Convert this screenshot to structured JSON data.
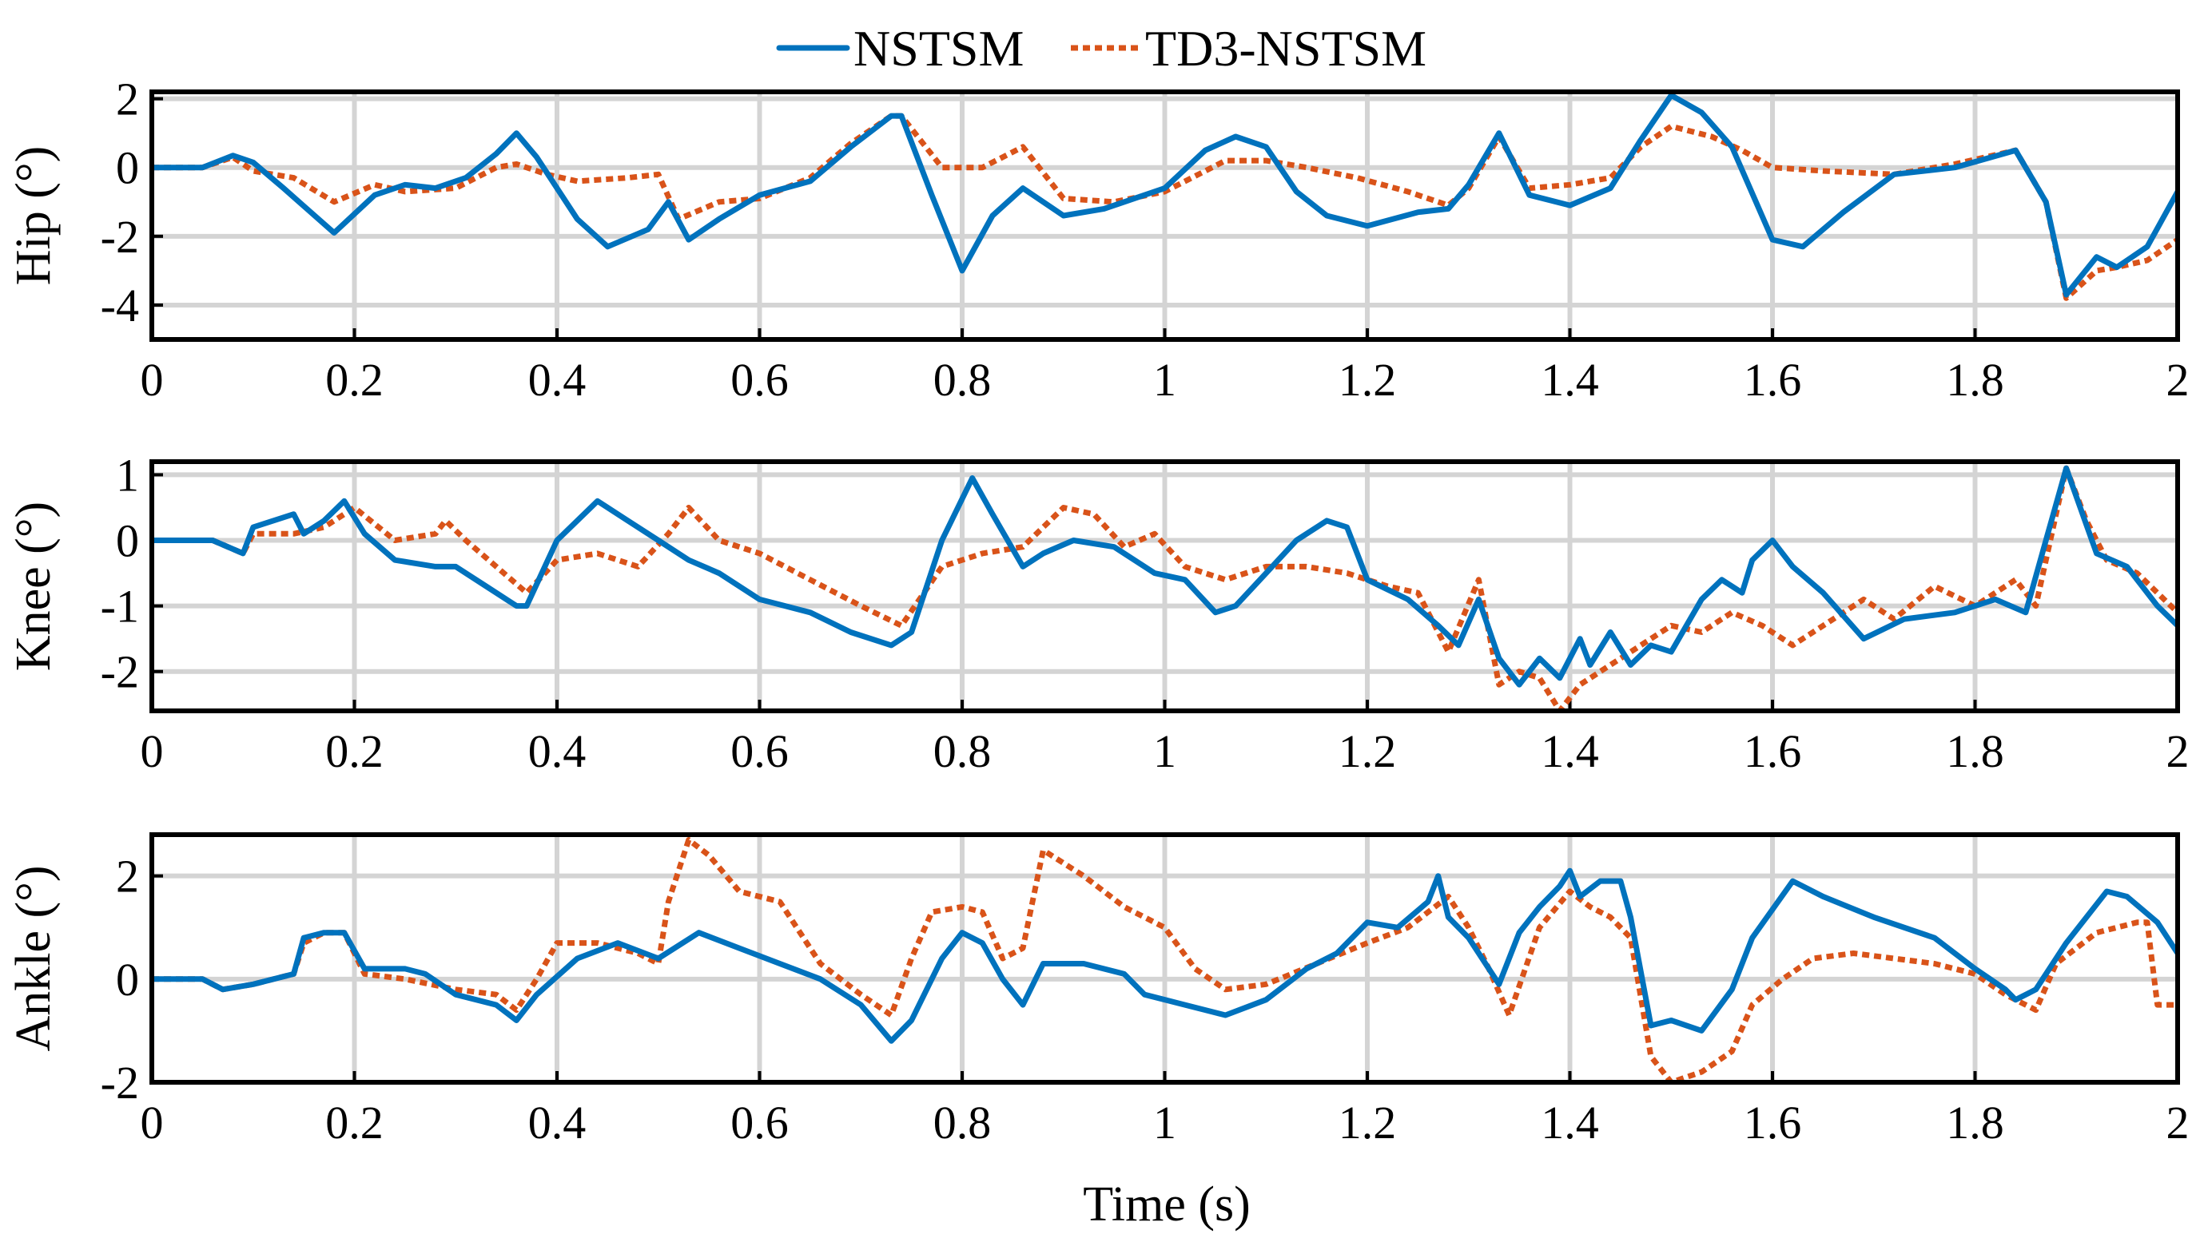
{
  "colors": {
    "nstsm": "#0072BD",
    "td3_nstsm": "#D95319",
    "grid": "#d4d4d4"
  },
  "legend": {
    "items": [
      "NSTSM",
      "TD3-NSTSM"
    ],
    "placement": "top-center"
  },
  "xlabel": "Time (s)",
  "chart_data": [
    {
      "type": "line",
      "title": "",
      "ylabel": "Hip (°)",
      "xlabel": "",
      "xlim": [
        0,
        2
      ],
      "ylim": [
        -5,
        2.2
      ],
      "xticks": [
        0,
        0.2,
        0.4,
        0.6,
        0.8,
        1,
        1.2,
        1.4,
        1.6,
        1.8,
        2
      ],
      "xtick_labels": [
        "0",
        "0.2",
        "0.4",
        "0.6",
        "0.8",
        "1",
        "1.2",
        "1.4",
        "1.6",
        "1.8",
        "2"
      ],
      "yticks": [
        2,
        0,
        -2,
        -4
      ],
      "ytick_labels": [
        "2",
        "0",
        "-2",
        "-4"
      ],
      "grid": true,
      "series": [
        {
          "name": "NSTSM",
          "x": [
            0,
            0.05,
            0.08,
            0.1,
            0.13,
            0.18,
            0.22,
            0.25,
            0.28,
            0.31,
            0.34,
            0.36,
            0.38,
            0.42,
            0.45,
            0.49,
            0.51,
            0.53,
            0.56,
            0.6,
            0.65,
            0.69,
            0.73,
            0.74,
            0.77,
            0.8,
            0.83,
            0.86,
            0.9,
            0.94,
            1,
            1.04,
            1.07,
            1.1,
            1.13,
            1.16,
            1.2,
            1.25,
            1.28,
            1.3,
            1.33,
            1.36,
            1.4,
            1.44,
            1.47,
            1.5,
            1.53,
            1.56,
            1.6,
            1.63,
            1.67,
            1.72,
            1.78,
            1.84,
            1.87,
            1.89,
            1.92,
            1.94,
            1.97,
            2
          ],
          "y": [
            0,
            0,
            0.35,
            0.15,
            -0.6,
            -1.9,
            -0.8,
            -0.5,
            -0.6,
            -0.3,
            0.4,
            1,
            0.3,
            -1.5,
            -2.3,
            -1.8,
            -1,
            -2.1,
            -1.5,
            -0.8,
            -0.4,
            0.6,
            1.5,
            1.5,
            -0.8,
            -3,
            -1.4,
            -0.6,
            -1.4,
            -1.2,
            -0.6,
            0.5,
            0.9,
            0.6,
            -0.7,
            -1.4,
            -1.7,
            -1.3,
            -1.2,
            -0.5,
            1,
            -0.8,
            -1.1,
            -0.6,
            0.8,
            2.1,
            1.6,
            0.6,
            -2.1,
            -2.3,
            -1.3,
            -0.2,
            0,
            0.5,
            -1,
            -3.7,
            -2.6,
            -2.9,
            -2.3,
            -0.7
          ]
        },
        {
          "name": "TD3-NSTSM",
          "x": [
            0,
            0.05,
            0.08,
            0.1,
            0.14,
            0.18,
            0.22,
            0.25,
            0.3,
            0.34,
            0.36,
            0.39,
            0.42,
            0.47,
            0.5,
            0.52,
            0.56,
            0.6,
            0.65,
            0.69,
            0.73,
            0.74,
            0.78,
            0.82,
            0.86,
            0.9,
            0.95,
            1,
            1.06,
            1.1,
            1.14,
            1.19,
            1.24,
            1.28,
            1.3,
            1.33,
            1.36,
            1.4,
            1.44,
            1.47,
            1.5,
            1.54,
            1.57,
            1.6,
            1.65,
            1.72,
            1.78,
            1.84,
            1.87,
            1.89,
            1.92,
            1.94,
            1.97,
            2
          ],
          "y": [
            0,
            0,
            0.3,
            -0.1,
            -0.3,
            -1,
            -0.5,
            -0.7,
            -0.6,
            0,
            0.1,
            -0.2,
            -0.4,
            -0.3,
            -0.2,
            -1.5,
            -1,
            -0.9,
            -0.3,
            0.7,
            1.5,
            1.5,
            0,
            0,
            0.6,
            -0.9,
            -1,
            -0.7,
            0.2,
            0.2,
            0,
            -0.3,
            -0.7,
            -1.1,
            -0.6,
            0.9,
            -0.6,
            -0.5,
            -0.3,
            0.6,
            1.2,
            0.9,
            0.5,
            0,
            -0.1,
            -0.2,
            0.1,
            0.5,
            -1,
            -3.8,
            -3,
            -2.9,
            -2.7,
            -2.1
          ]
        }
      ]
    },
    {
      "type": "line",
      "title": "",
      "ylabel": "Knee (°)",
      "xlabel": "",
      "xlim": [
        0,
        2
      ],
      "ylim": [
        -2.6,
        1.2
      ],
      "xticks": [
        0,
        0.2,
        0.4,
        0.6,
        0.8,
        1,
        1.2,
        1.4,
        1.6,
        1.8,
        2
      ],
      "xtick_labels": [
        "0",
        "0.2",
        "0.4",
        "0.6",
        "0.8",
        "1",
        "1.2",
        "1.4",
        "1.6",
        "1.8",
        "2"
      ],
      "yticks": [
        1,
        0,
        -1,
        -2
      ],
      "ytick_labels": [
        "1",
        "0",
        "-1",
        "-2"
      ],
      "grid": true,
      "series": [
        {
          "name": "NSTSM",
          "x": [
            0,
            0.06,
            0.09,
            0.1,
            0.14,
            0.15,
            0.17,
            0.19,
            0.21,
            0.24,
            0.28,
            0.3,
            0.33,
            0.36,
            0.37,
            0.4,
            0.44,
            0.47,
            0.5,
            0.53,
            0.56,
            0.6,
            0.65,
            0.69,
            0.73,
            0.75,
            0.78,
            0.81,
            0.83,
            0.86,
            0.88,
            0.91,
            0.95,
            0.99,
            1.02,
            1.05,
            1.07,
            1.1,
            1.13,
            1.16,
            1.18,
            1.2,
            1.24,
            1.27,
            1.29,
            1.31,
            1.33,
            1.35,
            1.37,
            1.39,
            1.41,
            1.42,
            1.44,
            1.46,
            1.48,
            1.5,
            1.53,
            1.55,
            1.57,
            1.58,
            1.6,
            1.62,
            1.65,
            1.69,
            1.73,
            1.78,
            1.82,
            1.85,
            1.87,
            1.89,
            1.92,
            1.95,
            1.98,
            2
          ],
          "y": [
            0,
            0,
            -0.2,
            0.2,
            0.4,
            0.1,
            0.3,
            0.6,
            0.1,
            -0.3,
            -0.4,
            -0.4,
            -0.7,
            -1,
            -1,
            0,
            0.6,
            0.3,
            0,
            -0.3,
            -0.5,
            -0.9,
            -1.1,
            -1.4,
            -1.6,
            -1.4,
            0,
            0.95,
            0.4,
            -0.4,
            -0.2,
            0,
            -0.1,
            -0.5,
            -0.6,
            -1.1,
            -1,
            -0.5,
            0,
            0.3,
            0.2,
            -0.6,
            -0.9,
            -1.3,
            -1.6,
            -0.9,
            -1.8,
            -2.2,
            -1.8,
            -2.1,
            -1.5,
            -1.9,
            -1.4,
            -1.9,
            -1.6,
            -1.7,
            -0.9,
            -0.6,
            -0.8,
            -0.3,
            0,
            -0.4,
            -0.8,
            -1.5,
            -1.2,
            -1.1,
            -0.9,
            -1.1,
            0,
            1.1,
            -0.2,
            -0.4,
            -1,
            -1.3
          ]
        },
        {
          "name": "TD3-NSTSM",
          "x": [
            0,
            0.06,
            0.09,
            0.1,
            0.14,
            0.17,
            0.2,
            0.24,
            0.28,
            0.29,
            0.31,
            0.34,
            0.37,
            0.4,
            0.44,
            0.48,
            0.51,
            0.53,
            0.56,
            0.6,
            0.65,
            0.7,
            0.74,
            0.78,
            0.82,
            0.86,
            0.9,
            0.93,
            0.96,
            0.99,
            1.02,
            1.06,
            1.1,
            1.14,
            1.18,
            1.22,
            1.25,
            1.28,
            1.31,
            1.33,
            1.35,
            1.37,
            1.39,
            1.41,
            1.45,
            1.5,
            1.53,
            1.56,
            1.59,
            1.62,
            1.65,
            1.69,
            1.72,
            1.76,
            1.8,
            1.84,
            1.86,
            1.89,
            1.91,
            1.93,
            1.96,
            2
          ],
          "y": [
            0,
            0,
            -0.2,
            0.1,
            0.1,
            0.2,
            0.5,
            0,
            0.1,
            0.3,
            0,
            -0.4,
            -0.8,
            -0.3,
            -0.2,
            -0.4,
            0.1,
            0.5,
            0,
            -0.2,
            -0.6,
            -1,
            -1.3,
            -0.4,
            -0.2,
            -0.1,
            0.5,
            0.4,
            -0.1,
            0.1,
            -0.4,
            -0.6,
            -0.4,
            -0.4,
            -0.5,
            -0.7,
            -0.8,
            -1.7,
            -0.6,
            -2.2,
            -2,
            -2.1,
            -2.6,
            -2.2,
            -1.8,
            -1.3,
            -1.4,
            -1.1,
            -1.3,
            -1.6,
            -1.3,
            -0.9,
            -1.2,
            -0.7,
            -1,
            -0.6,
            -1,
            1.1,
            0.3,
            -0.3,
            -0.5,
            -1.1
          ]
        }
      ]
    },
    {
      "type": "line",
      "title": "",
      "ylabel": "Ankle (°)",
      "xlabel": "Time (s)",
      "xlim": [
        0,
        2
      ],
      "ylim": [
        -2,
        2.8
      ],
      "xticks": [
        0,
        0.2,
        0.4,
        0.6,
        0.8,
        1,
        1.2,
        1.4,
        1.6,
        1.8,
        2
      ],
      "xtick_labels": [
        "0",
        "0.2",
        "0.4",
        "0.6",
        "0.8",
        "1",
        "1.2",
        "1.4",
        "1.6",
        "1.8",
        "2"
      ],
      "yticks": [
        2,
        0,
        -2
      ],
      "ytick_labels": [
        "2",
        "0",
        "-2"
      ],
      "grid": true,
      "series": [
        {
          "name": "NSTSM",
          "x": [
            0,
            0.05,
            0.07,
            0.1,
            0.14,
            0.15,
            0.17,
            0.19,
            0.21,
            0.25,
            0.27,
            0.3,
            0.34,
            0.36,
            0.38,
            0.42,
            0.46,
            0.5,
            0.54,
            0.58,
            0.62,
            0.66,
            0.7,
            0.73,
            0.75,
            0.78,
            0.8,
            0.82,
            0.84,
            0.86,
            0.88,
            0.92,
            0.96,
            0.98,
            1.02,
            1.06,
            1.1,
            1.14,
            1.17,
            1.2,
            1.23,
            1.26,
            1.27,
            1.28,
            1.3,
            1.33,
            1.35,
            1.37,
            1.39,
            1.4,
            1.41,
            1.43,
            1.45,
            1.46,
            1.48,
            1.5,
            1.53,
            1.56,
            1.58,
            1.62,
            1.65,
            1.7,
            1.76,
            1.8,
            1.83,
            1.84,
            1.86,
            1.89,
            1.93,
            1.95,
            1.98,
            2
          ],
          "y": [
            0,
            0,
            -0.2,
            -0.1,
            0.1,
            0.8,
            0.9,
            0.9,
            0.2,
            0.2,
            0.1,
            -0.3,
            -0.5,
            -0.8,
            -0.3,
            0.4,
            0.7,
            0.4,
            0.9,
            0.6,
            0.3,
            0,
            -0.5,
            -1.2,
            -0.8,
            0.4,
            0.9,
            0.7,
            0,
            -0.5,
            0.3,
            0.3,
            0.1,
            -0.3,
            -0.5,
            -0.7,
            -0.4,
            0.2,
            0.5,
            1.1,
            1,
            1.5,
            2,
            1.2,
            0.8,
            -0.1,
            0.9,
            1.4,
            1.8,
            2.1,
            1.6,
            1.9,
            1.9,
            1.2,
            -0.9,
            -0.8,
            -1,
            -0.2,
            0.8,
            1.9,
            1.6,
            1.2,
            0.8,
            0.2,
            -0.2,
            -0.4,
            -0.2,
            0.7,
            1.7,
            1.6,
            1.1,
            0.5
          ]
        },
        {
          "name": "TD3-NSTSM",
          "x": [
            0,
            0.05,
            0.07,
            0.1,
            0.14,
            0.15,
            0.17,
            0.19,
            0.21,
            0.25,
            0.3,
            0.34,
            0.36,
            0.38,
            0.4,
            0.44,
            0.48,
            0.5,
            0.51,
            0.53,
            0.55,
            0.58,
            0.62,
            0.66,
            0.7,
            0.73,
            0.75,
            0.77,
            0.8,
            0.82,
            0.84,
            0.86,
            0.88,
            0.92,
            0.96,
            1,
            1.03,
            1.06,
            1.1,
            1.15,
            1.2,
            1.24,
            1.28,
            1.3,
            1.32,
            1.34,
            1.37,
            1.4,
            1.42,
            1.44,
            1.46,
            1.48,
            1.5,
            1.53,
            1.56,
            1.58,
            1.61,
            1.64,
            1.68,
            1.72,
            1.76,
            1.8,
            1.83,
            1.86,
            1.88,
            1.92,
            1.96,
            1.97,
            1.98,
            2
          ],
          "y": [
            0,
            0,
            -0.2,
            -0.1,
            0.1,
            0.7,
            0.9,
            0.9,
            0.1,
            0,
            -0.2,
            -0.3,
            -0.6,
            0,
            0.7,
            0.7,
            0.5,
            0.3,
            1.5,
            2.7,
            2.4,
            1.7,
            1.5,
            0.3,
            -0.3,
            -0.7,
            0.4,
            1.3,
            1.4,
            1.3,
            0.4,
            0.6,
            2.5,
            2,
            1.4,
            1,
            0.2,
            -0.2,
            -0.1,
            0.3,
            0.7,
            1,
            1.6,
            1,
            0.2,
            -0.7,
            1,
            1.7,
            1.4,
            1.2,
            0.8,
            -1.5,
            -2,
            -1.8,
            -1.4,
            -0.5,
            0,
            0.4,
            0.5,
            0.4,
            0.3,
            0.1,
            -0.3,
            -0.6,
            0.3,
            0.9,
            1.1,
            1.1,
            -0.5,
            -0.5
          ]
        }
      ]
    }
  ]
}
